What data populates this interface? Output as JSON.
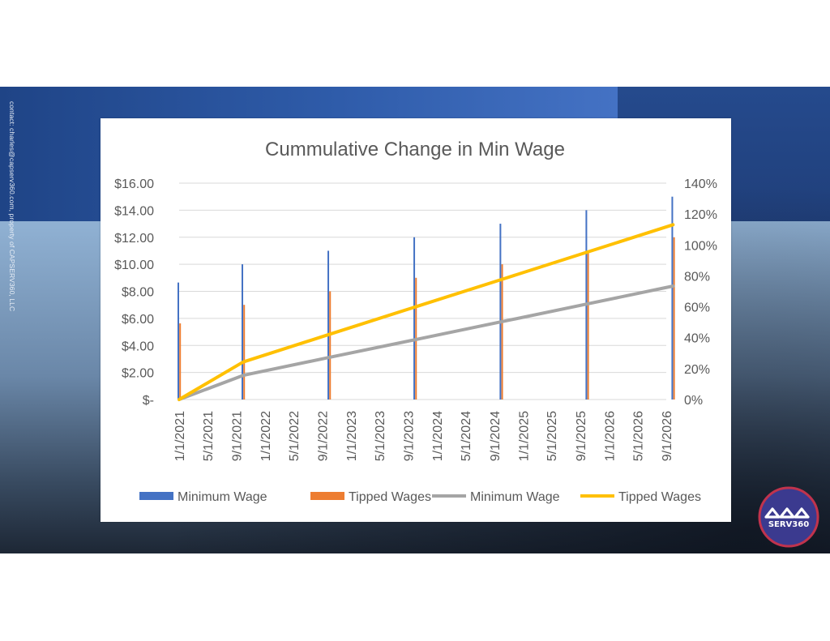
{
  "watermark": "contact: charles@capserv360.com, property of CAPSERV360, LLC",
  "logo_text": "SERV360",
  "colors": {
    "min_wage_bar": "#4472c4",
    "tipped_bar": "#ed7d31",
    "min_wage_line": "#a5a5a5",
    "tipped_line": "#ffc000"
  },
  "chart_data": {
    "type": "bar",
    "title": "Cummulative Change in Min Wage",
    "x_axis_type": "date",
    "x_tick_labels": [
      "1/1/2021",
      "5/1/2021",
      "9/1/2021",
      "1/1/2022",
      "5/1/2022",
      "9/1/2022",
      "1/1/2023",
      "5/1/2023",
      "9/1/2023",
      "1/1/2024",
      "5/1/2024",
      "9/1/2024",
      "1/1/2025",
      "5/1/2025",
      "9/1/2025",
      "1/1/2026",
      "5/1/2026",
      "9/1/2026"
    ],
    "left_axis": {
      "ylim": [
        0,
        16
      ],
      "tick_labels": [
        "$-",
        "$2.00",
        "$4.00",
        "$6.00",
        "$8.00",
        "$10.00",
        "$12.00",
        "$14.00",
        "$16.00"
      ]
    },
    "right_axis": {
      "ylim": [
        0,
        140
      ],
      "tick_labels": [
        "0%",
        "20%",
        "40%",
        "60%",
        "80%",
        "100%",
        "120%",
        "140%"
      ]
    },
    "grid": true,
    "legend_position": "bottom",
    "series": [
      {
        "name": "Minimum Wage",
        "kind": "bar",
        "axis": "left",
        "points": [
          {
            "x": "1/1/2021",
            "y": 8.65
          },
          {
            "x": "9/30/2021",
            "y": 10.0
          },
          {
            "x": "9/30/2022",
            "y": 11.0
          },
          {
            "x": "9/30/2023",
            "y": 12.0
          },
          {
            "x": "9/30/2024",
            "y": 13.0
          },
          {
            "x": "9/30/2025",
            "y": 14.0
          },
          {
            "x": "9/30/2026",
            "y": 15.0
          }
        ]
      },
      {
        "name": "Tipped Wages",
        "kind": "bar",
        "axis": "left",
        "points": [
          {
            "x": "1/1/2021",
            "y": 5.63
          },
          {
            "x": "9/30/2021",
            "y": 7.0
          },
          {
            "x": "9/30/2022",
            "y": 8.0
          },
          {
            "x": "9/30/2023",
            "y": 9.0
          },
          {
            "x": "9/30/2024",
            "y": 10.0
          },
          {
            "x": "9/30/2025",
            "y": 11.0
          },
          {
            "x": "9/30/2026",
            "y": 12.0
          }
        ]
      },
      {
        "name": "Minimum Wage",
        "kind": "line",
        "axis": "right",
        "points": [
          {
            "x": "1/1/2021",
            "y": 0
          },
          {
            "x": "9/30/2021",
            "y": 15.6
          },
          {
            "x": "9/30/2022",
            "y": 27.2
          },
          {
            "x": "9/30/2023",
            "y": 38.7
          },
          {
            "x": "9/30/2024",
            "y": 50.3
          },
          {
            "x": "9/30/2025",
            "y": 61.8
          },
          {
            "x": "9/30/2026",
            "y": 73.4
          }
        ]
      },
      {
        "name": "Tipped Wages",
        "kind": "line",
        "axis": "right",
        "points": [
          {
            "x": "1/1/2021",
            "y": 0
          },
          {
            "x": "9/30/2021",
            "y": 24.3
          },
          {
            "x": "9/30/2022",
            "y": 42.1
          },
          {
            "x": "9/30/2023",
            "y": 59.9
          },
          {
            "x": "9/30/2024",
            "y": 77.6
          },
          {
            "x": "9/30/2025",
            "y": 95.4
          },
          {
            "x": "9/30/2026",
            "y": 113.1
          }
        ]
      }
    ]
  }
}
